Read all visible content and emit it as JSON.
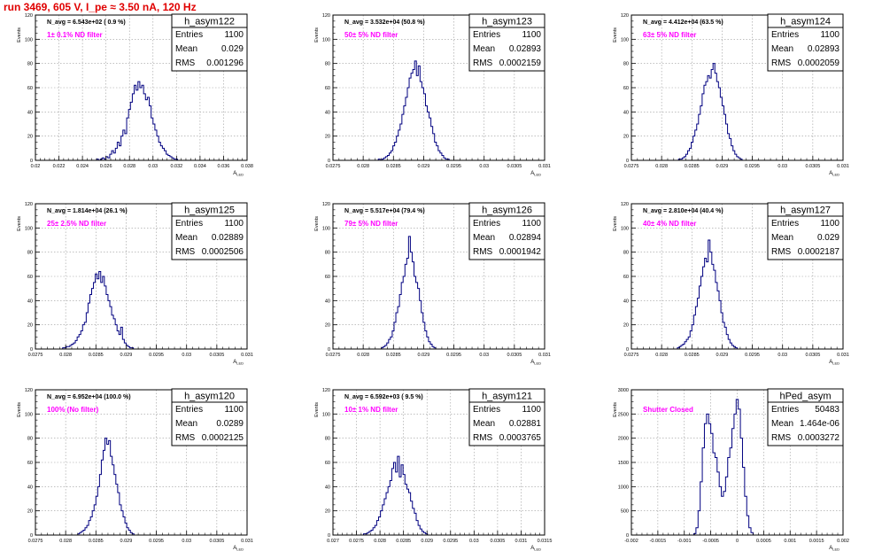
{
  "page": {
    "title": "run 3469,   605 V, I_pe ≈ 3.50 nA, 120 Hz"
  },
  "colors": {
    "hist": "#000080",
    "label": "#ff00ff",
    "title": "#e00000",
    "grid": "#9a9a9a"
  },
  "chart_data": [
    {
      "type": "histogram",
      "stats_title": "h_asym122",
      "entries": "1100",
      "mean": "0.029",
      "rms": "0.001296",
      "navg": "N_avg = 6.543e+02 ( 0.9 %)",
      "filter_label": "1± 0.1% ND filter",
      "ylabel": "Events",
      "xlabel": "A_LED",
      "xlim": [
        0.02,
        0.038
      ],
      "ylim": [
        0,
        120
      ],
      "xticks": [
        0.02,
        0.022,
        0.024,
        0.026,
        0.028,
        0.03,
        0.032,
        0.034,
        0.036,
        0.038
      ],
      "xtick_labels": [
        "0.02",
        "0.022",
        "0.024",
        "0.026",
        "0.028",
        "0.03",
        "0.032",
        "0.034",
        "0.036",
        "0.038"
      ],
      "yticks": [
        0,
        20,
        40,
        60,
        80,
        100,
        120
      ],
      "ytick_labels": [
        "0",
        "20",
        "40",
        "60",
        "80",
        "100",
        "120"
      ],
      "bins": {
        "lo": 0.0252,
        "w": 0.00016,
        "values": [
          1,
          0,
          1,
          2,
          1,
          3,
          2,
          5,
          8,
          6,
          10,
          15,
          12,
          20,
          25,
          22,
          35,
          42,
          48,
          55,
          62,
          58,
          65,
          60,
          62,
          55,
          50,
          52,
          45,
          35,
          30,
          25,
          20,
          15,
          12,
          10,
          8,
          5,
          4,
          3,
          2,
          1,
          1
        ]
      }
    },
    {
      "type": "histogram",
      "stats_title": "h_asym123",
      "entries": "1100",
      "mean": "0.02893",
      "rms": "0.0002159",
      "navg": "N_avg = 3.532e+04 (50.8 %)",
      "filter_label": "50± 5% ND filter",
      "ylabel": "Events",
      "xlabel": "A_LED",
      "xlim": [
        0.0275,
        0.031
      ],
      "ylim": [
        0,
        120
      ],
      "xticks": [
        0.0275,
        0.028,
        0.0285,
        0.029,
        0.0295,
        0.03,
        0.0305,
        0.031
      ],
      "xtick_labels": [
        "0.0275",
        "0.028",
        "0.0285",
        "0.029",
        "0.0295",
        "0.03",
        "0.0305",
        "0.031"
      ],
      "yticks": [
        0,
        20,
        40,
        60,
        80,
        100,
        120
      ],
      "ytick_labels": [
        "0",
        "20",
        "40",
        "60",
        "80",
        "100",
        "120"
      ],
      "bins": {
        "lo": 0.02825,
        "w": 3e-05,
        "values": [
          1,
          0,
          1,
          2,
          3,
          4,
          6,
          8,
          12,
          15,
          20,
          25,
          30,
          38,
          45,
          52,
          60,
          68,
          72,
          75,
          82,
          70,
          78,
          65,
          60,
          55,
          45,
          40,
          35,
          28,
          22,
          15,
          12,
          8,
          6,
          4,
          2,
          1,
          1
        ]
      }
    },
    {
      "type": "histogram",
      "stats_title": "h_asym124",
      "entries": "1100",
      "mean": "0.02893",
      "rms": "0.0002059",
      "navg": "N_avg = 4.412e+04 (63.5 %)",
      "filter_label": "63± 5% ND filter",
      "ylabel": "Events",
      "xlabel": "A_LED",
      "xlim": [
        0.0275,
        0.031
      ],
      "ylim": [
        0,
        120
      ],
      "xticks": [
        0.0275,
        0.028,
        0.0285,
        0.029,
        0.0295,
        0.03,
        0.0305,
        0.031
      ],
      "xtick_labels": [
        "0.0275",
        "0.028",
        "0.0285",
        "0.029",
        "0.0295",
        "0.03",
        "0.0305",
        "0.031"
      ],
      "yticks": [
        0,
        20,
        40,
        60,
        80,
        100,
        120
      ],
      "ytick_labels": [
        "0",
        "20",
        "40",
        "60",
        "80",
        "100",
        "120"
      ],
      "bins": {
        "lo": 0.02828,
        "w": 3e-05,
        "values": [
          1,
          1,
          2,
          3,
          5,
          8,
          10,
          15,
          20,
          25,
          30,
          38,
          45,
          55,
          62,
          65,
          70,
          68,
          75,
          80,
          72,
          65,
          60,
          52,
          45,
          38,
          30,
          22,
          18,
          12,
          8,
          5,
          3,
          2,
          1
        ]
      }
    },
    {
      "type": "histogram",
      "stats_title": "h_asym125",
      "entries": "1100",
      "mean": "0.02889",
      "rms": "0.0002506",
      "navg": "N_avg = 1.814e+04 (26.1 %)",
      "filter_label": "25± 2.5% ND filter",
      "ylabel": "Events",
      "xlabel": "A_LED",
      "xlim": [
        0.0275,
        0.031
      ],
      "ylim": [
        0,
        120
      ],
      "xticks": [
        0.0275,
        0.028,
        0.0285,
        0.029,
        0.0295,
        0.03,
        0.0305,
        0.031
      ],
      "xtick_labels": [
        "0.0275",
        "0.028",
        "0.0285",
        "0.029",
        "0.0295",
        "0.03",
        "0.0305",
        "0.031"
      ],
      "yticks": [
        0,
        20,
        40,
        60,
        80,
        100,
        120
      ],
      "ytick_labels": [
        "0",
        "20",
        "40",
        "60",
        "80",
        "100",
        "120"
      ],
      "bins": {
        "lo": 0.02795,
        "w": 3e-05,
        "values": [
          1,
          1,
          2,
          2,
          3,
          4,
          5,
          7,
          10,
          12,
          15,
          20,
          22,
          30,
          38,
          45,
          50,
          55,
          62,
          58,
          64,
          55,
          60,
          52,
          45,
          40,
          35,
          28,
          25,
          20,
          15,
          12,
          18,
          8,
          5,
          3,
          2,
          1,
          1
        ]
      }
    },
    {
      "type": "histogram",
      "stats_title": "h_asym126",
      "entries": "1100",
      "mean": "0.02894",
      "rms": "0.0001942",
      "navg": "N_avg = 5.517e+04 (79.4 %)",
      "filter_label": "79± 5% ND filter",
      "ylabel": "Events",
      "xlabel": "A_LED",
      "xlim": [
        0.0275,
        0.031
      ],
      "ylim": [
        0,
        120
      ],
      "xticks": [
        0.0275,
        0.028,
        0.0285,
        0.029,
        0.0295,
        0.03,
        0.0305,
        0.031
      ],
      "xtick_labels": [
        "0.0275",
        "0.028",
        "0.0285",
        "0.029",
        "0.0295",
        "0.03",
        "0.0305",
        "0.031"
      ],
      "yticks": [
        0,
        20,
        40,
        60,
        80,
        100,
        120
      ],
      "ytick_labels": [
        "0",
        "20",
        "40",
        "60",
        "80",
        "100",
        "120"
      ],
      "bins": {
        "lo": 0.0283,
        "w": 3e-05,
        "values": [
          1,
          2,
          3,
          5,
          8,
          10,
          15,
          22,
          30,
          35,
          45,
          55,
          60,
          70,
          75,
          93,
          80,
          72,
          60,
          55,
          50,
          40,
          30,
          22,
          15,
          10,
          6,
          4,
          2,
          1
        ]
      }
    },
    {
      "type": "histogram",
      "stats_title": "h_asym127",
      "entries": "1100",
      "mean": "0.029",
      "rms": "0.0002187",
      "navg": "N_avg = 2.810e+04 (40.4 %)",
      "filter_label": "40± 4% ND filter",
      "ylabel": "Events",
      "xlabel": "A_LED",
      "xlim": [
        0.0275,
        0.031
      ],
      "ylim": [
        0,
        120
      ],
      "xticks": [
        0.0275,
        0.028,
        0.0285,
        0.029,
        0.0295,
        0.03,
        0.0305,
        0.031
      ],
      "xtick_labels": [
        "0.0275",
        "0.028",
        "0.0285",
        "0.029",
        "0.0295",
        "0.03",
        "0.0305",
        "0.031"
      ],
      "yticks": [
        0,
        20,
        40,
        60,
        80,
        100,
        120
      ],
      "ytick_labels": [
        "0",
        "20",
        "40",
        "60",
        "80",
        "100",
        "120"
      ],
      "bins": {
        "lo": 0.02826,
        "w": 3e-05,
        "values": [
          1,
          2,
          3,
          4,
          6,
          8,
          10,
          15,
          20,
          28,
          35,
          42,
          52,
          60,
          68,
          75,
          72,
          90,
          80,
          70,
          65,
          55,
          48,
          40,
          30,
          22,
          18,
          12,
          8,
          5,
          3,
          2,
          1
        ]
      }
    },
    {
      "type": "histogram",
      "stats_title": "h_asym120",
      "entries": "1100",
      "mean": "0.0289",
      "rms": "0.0002125",
      "navg": "N_avg = 6.952e+04 (100.0 %)",
      "filter_label": "100% (No filter)",
      "ylabel": "Events",
      "xlabel": "A_LED",
      "xlim": [
        0.0275,
        0.031
      ],
      "ylim": [
        0,
        120
      ],
      "xticks": [
        0.0275,
        0.028,
        0.0285,
        0.029,
        0.0295,
        0.03,
        0.0305,
        0.031
      ],
      "xtick_labels": [
        "0.0275",
        "0.028",
        "0.0285",
        "0.029",
        "0.0295",
        "0.03",
        "0.0305",
        "0.031"
      ],
      "yticks": [
        0,
        20,
        40,
        60,
        80,
        100,
        120
      ],
      "ytick_labels": [
        "0",
        "20",
        "40",
        "60",
        "80",
        "100",
        "120"
      ],
      "bins": {
        "lo": 0.0282,
        "w": 3e-05,
        "values": [
          1,
          2,
          3,
          4,
          6,
          8,
          12,
          15,
          20,
          25,
          32,
          40,
          50,
          62,
          70,
          80,
          75,
          78,
          65,
          58,
          50,
          42,
          35,
          25,
          20,
          15,
          10,
          6,
          4,
          2,
          1
        ]
      }
    },
    {
      "type": "histogram",
      "stats_title": "h_asym121",
      "entries": "1100",
      "mean": "0.02881",
      "rms": "0.0003765",
      "navg": "N_avg = 6.592e+03 ( 9.5 %)",
      "filter_label": "10± 1% ND filter",
      "ylabel": "Events",
      "xlabel": "A_LED",
      "xlim": [
        0.027,
        0.0315
      ],
      "ylim": [
        0,
        120
      ],
      "xticks": [
        0.027,
        0.0275,
        0.028,
        0.0285,
        0.029,
        0.0295,
        0.03,
        0.0305,
        0.031,
        0.0315
      ],
      "xtick_labels": [
        "0.027",
        "0.0275",
        "0.028",
        "0.0285",
        "0.029",
        "0.0295",
        "0.03",
        "0.0305",
        "0.031",
        "0.0315"
      ],
      "yticks": [
        0,
        20,
        40,
        60,
        80,
        100,
        120
      ],
      "ytick_labels": [
        "0",
        "20",
        "40",
        "60",
        "80",
        "100",
        "120"
      ],
      "bins": {
        "lo": 0.02765,
        "w": 4e-05,
        "values": [
          1,
          1,
          2,
          3,
          4,
          6,
          8,
          12,
          15,
          20,
          25,
          30,
          35,
          40,
          45,
          55,
          60,
          52,
          65,
          48,
          58,
          50,
          42,
          38,
          35,
          28,
          22,
          18,
          12,
          8,
          5,
          3,
          2,
          1
        ]
      }
    },
    {
      "type": "histogram",
      "stats_title": "hPed_asym",
      "entries": "50483",
      "mean": "1.464e-06",
      "rms": "0.0003272",
      "navg": "",
      "filter_label": "Shutter Closed",
      "ylabel": "Events",
      "xlabel": "A_LED",
      "xlim": [
        -0.002,
        0.002
      ],
      "ylim": [
        0,
        3000
      ],
      "xticks": [
        -0.002,
        -0.0015,
        -0.001,
        -0.0005,
        0,
        0.0005,
        0.001,
        0.0015,
        0.002
      ],
      "xtick_labels": [
        "-0.002",
        "-0.0015",
        "-0.001",
        "-0.0005",
        "0",
        "0.0005",
        "0.001",
        "0.0015",
        "0.002"
      ],
      "yticks": [
        0,
        500,
        1000,
        1500,
        2000,
        2500,
        3000
      ],
      "ytick_labels": [
        "0",
        "500",
        "1000",
        "1500",
        "2000",
        "2500",
        "3000"
      ],
      "bins": {
        "lo": -0.00082,
        "w": 4e-05,
        "values": [
          30,
          150,
          500,
          1100,
          1800,
          2300,
          2500,
          2300,
          2100,
          1700,
          1600,
          1300,
          1000,
          800,
          900,
          1200,
          1600,
          1800,
          2200,
          2500,
          2800,
          2600,
          2000,
          1400,
          800,
          400,
          150,
          50
        ]
      }
    }
  ]
}
